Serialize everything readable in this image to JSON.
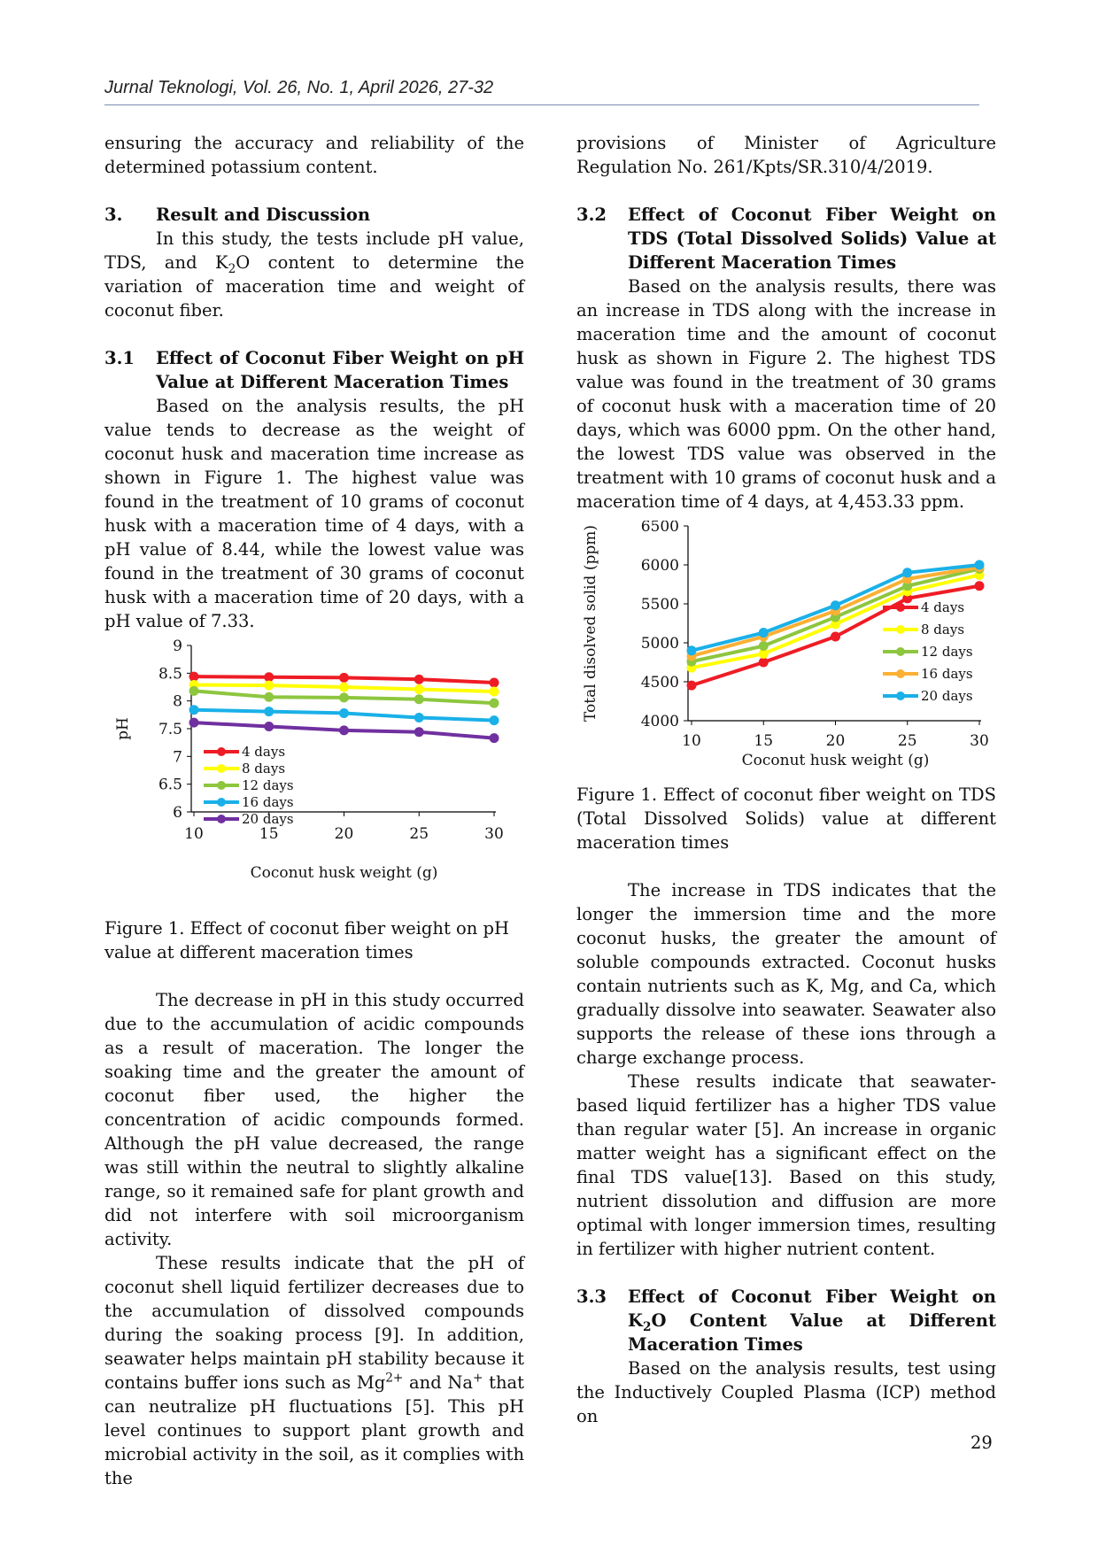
{
  "header": {
    "journal": "Jurnal Teknologi, Vol. 26, No. 1, April 2026, 27-32"
  },
  "left": {
    "p0": "ensuring the accuracy and reliability of the determined potassium content.",
    "sec3_num": "3.",
    "sec3_title": "Result and Discussion",
    "p1_pre": "In this study, the tests include pH value, TDS, and K",
    "p1_sub": "2",
    "p1_post": "O content to determine the variation of maceration time and weight of coconut fiber.",
    "sec31_num": "3.1",
    "sec31_title": "Effect of Coconut Fiber Weight on pH Value at Different Maceration Times",
    "p2": "Based on the analysis results, the pH value tends to decrease as the weight of coconut husk and maceration time increase as shown in Figure 1. The highest value was found in the treatment of 10 grams of coconut husk with a maceration time of 4 days, with a pH value of 8.44, while the lowest value was found in the treatment of 30 grams of coconut husk with a maceration time of 20 days, with a pH value of 7.33.",
    "fig1_caption": "Figure 1.  Effect of coconut fiber weight on pH value at different maceration times",
    "p3": "The decrease in pH in this study occurred due to the accumulation of acidic compounds as a result of maceration. The longer the soaking time and the greater the amount of coconut fiber used, the higher the concentration of acidic compounds formed. Although the pH value decreased, the range was still within the neutral to slightly alkaline range, so it remained safe for plant growth and did not interfere with soil microorganism activity.",
    "p4_a": "These results indicate that the pH of coconut shell liquid fertilizer decreases due to the accumulation of dissolved compounds during the soaking process [9]. In addition, seawater helps maintain pH stability because it contains buffer ions such as Mg",
    "p4_sup1": "2+",
    "p4_b": " and Na",
    "p4_sup2": "+",
    "p4_c": " that can neutralize pH fluctuations [5]. This pH level continues to support plant growth and microbial activity in the soil, as it complies with the"
  },
  "right": {
    "p0": "provisions of Minister of Agriculture Regulation No. 261/Kpts/SR.310/4/2019.",
    "sec32_num": "3.2",
    "sec32_title": "Effect of Coconut Fiber Weight on TDS (Total Dissolved Solids) Value at Different Maceration Times",
    "p1": "Based on the analysis results, there was an increase in TDS along with the increase in maceration time and the amount of coconut husk as shown in Figure 2. The highest TDS value was found in the treatment of 30 grams of coconut husk with a maceration time of 20 days, which was 6000 ppm. On the other hand, the lowest TDS value was observed in the treatment with 10 grams of coconut husk and a maceration time of 4 days, at 4,453.33 ppm.",
    "fig2_caption": "Figure 1. Effect of coconut fiber weight on TDS (Total Dissolved Solids) value at different maceration times",
    "p2": "The increase in TDS indicates that the longer the immersion time and the more coconut husks, the greater the amount of soluble compounds extracted. Coconut husks contain nutrients such as K, Mg, and Ca, which gradually dissolve into seawater. Seawater also supports the release of these ions through a charge exchange process.",
    "p3": "These results indicate that seawater-based liquid fertilizer has a higher TDS value than regular water [5]. An increase in organic matter weight has a significant effect on the final TDS value[13]. Based on this study, nutrient dissolution and diffusion are more optimal with longer immersion times, resulting in fertilizer with higher nutrient content.",
    "sec33_num": "3.3",
    "sec33_title_pre": "Effect of Coconut Fiber Weight on K",
    "sec33_title_sub": "2",
    "sec33_title_post": "O Content Value at Different Maceration Times",
    "p4": "Based on the analysis results, test using the Inductively Coupled Plasma (ICP) method on"
  },
  "page_number": "29",
  "chart_data": [
    {
      "type": "line",
      "xlabel": "Coconut husk weight (g)",
      "ylabel": "pH",
      "x": [
        10,
        15,
        20,
        25,
        30
      ],
      "ylim": [
        6,
        9
      ],
      "yticks": [
        6,
        6.5,
        7,
        7.5,
        8,
        8.5,
        9
      ],
      "legend_position": "bottom-left",
      "grid": false,
      "series": [
        {
          "name": "4 days",
          "color": "#ee1c25",
          "values": [
            8.44,
            8.43,
            8.42,
            8.39,
            8.33
          ]
        },
        {
          "name": "8 days",
          "color": "#ffff00",
          "values": [
            8.29,
            8.28,
            8.25,
            8.21,
            8.17
          ]
        },
        {
          "name": "12 days",
          "color": "#8dc63f",
          "values": [
            8.18,
            8.07,
            8.06,
            8.03,
            7.96
          ]
        },
        {
          "name": "16 days",
          "color": "#1ab0e8",
          "values": [
            7.84,
            7.81,
            7.78,
            7.7,
            7.65
          ]
        },
        {
          "name": "20 days",
          "color": "#7030a0",
          "values": [
            7.61,
            7.54,
            7.47,
            7.44,
            7.33
          ]
        }
      ]
    },
    {
      "type": "line",
      "xlabel": "Coconut husk weight (g)",
      "ylabel": "Total disolved solid (ppm)",
      "x": [
        10,
        15,
        20,
        25,
        30
      ],
      "ylim": [
        4000,
        6500
      ],
      "yticks": [
        4000,
        4500,
        5000,
        5500,
        6000,
        6500
      ],
      "legend_position": "right",
      "grid": false,
      "series": [
        {
          "name": "4 days",
          "color": "#ee1c25",
          "values": [
            4453.33,
            4750,
            5080,
            5570,
            5730
          ]
        },
        {
          "name": "8 days",
          "color": "#ffff00",
          "values": [
            4680,
            4860,
            5240,
            5660,
            5870
          ]
        },
        {
          "name": "12 days",
          "color": "#8dc63f",
          "values": [
            4760,
            4960,
            5330,
            5730,
            5950
          ]
        },
        {
          "name": "16 days",
          "color": "#fbb034",
          "values": [
            4830,
            5080,
            5410,
            5820,
            5970
          ]
        },
        {
          "name": "20 days",
          "color": "#1ab0e8",
          "values": [
            4900,
            5130,
            5480,
            5900,
            6000
          ]
        }
      ]
    }
  ]
}
